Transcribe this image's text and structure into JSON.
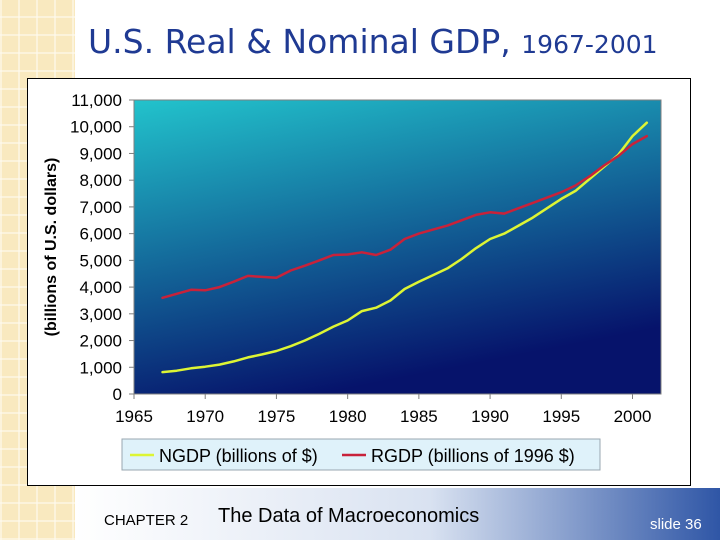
{
  "slide": {
    "title": "U.S. Real & Nominal GDP,",
    "title_years": "1967-2001",
    "chapter": "CHAPTER 2",
    "subtitle": "The Data of Macroeconomics",
    "slide_number": "slide 36"
  },
  "colors": {
    "title": "#1f3a93",
    "plot_top": "#22c3cc",
    "plot_bottom": "#06136b",
    "ngdp_line": "#ddf534",
    "rgdp_line": "#c8223a",
    "sidebar": "#f9e9bf",
    "legend_bg": "#dff2fa"
  },
  "chart_data": {
    "type": "line",
    "title": "",
    "xlabel": "",
    "ylabel": "(billions of U.S. dollars)",
    "xlim": [
      1965,
      2002
    ],
    "ylim": [
      0,
      11000
    ],
    "x_ticks": [
      1965,
      1970,
      1975,
      1980,
      1985,
      1990,
      1995,
      2000
    ],
    "y_ticks": [
      0,
      1000,
      2000,
      3000,
      4000,
      5000,
      6000,
      7000,
      8000,
      9000,
      10000,
      11000
    ],
    "y_tick_labels": [
      "0",
      "1,000",
      "2,000",
      "3,000",
      "4,000",
      "5,000",
      "6,000",
      "7,000",
      "8,000",
      "9,000",
      "10,000",
      "11,000"
    ],
    "legend_position": "bottom",
    "series": [
      {
        "name": "NGDP (billions of $)",
        "color": "#ddf534",
        "x": [
          1967,
          1968,
          1969,
          1970,
          1971,
          1972,
          1973,
          1974,
          1975,
          1976,
          1977,
          1978,
          1979,
          1980,
          1981,
          1982,
          1983,
          1984,
          1985,
          1986,
          1987,
          1988,
          1989,
          1990,
          1991,
          1992,
          1993,
          1994,
          1995,
          1996,
          1997,
          1998,
          1999,
          2000,
          2001
        ],
        "y": [
          820,
          870,
          960,
          1020,
          1100,
          1220,
          1370,
          1480,
          1610,
          1790,
          2000,
          2250,
          2520,
          2750,
          3100,
          3230,
          3500,
          3930,
          4200,
          4450,
          4700,
          5050,
          5450,
          5800,
          6000,
          6300,
          6600,
          6950,
          7300,
          7600,
          8050,
          8500,
          8950,
          9650,
          10150
        ]
      },
      {
        "name": "RGDP (billions of 1996 $)",
        "color": "#c8223a",
        "x": [
          1967,
          1968,
          1969,
          1970,
          1971,
          1972,
          1973,
          1974,
          1975,
          1976,
          1977,
          1978,
          1979,
          1980,
          1981,
          1982,
          1983,
          1984,
          1985,
          1986,
          1987,
          1988,
          1989,
          1990,
          1991,
          1992,
          1993,
          1994,
          1995,
          1996,
          1997,
          1998,
          1999,
          2000,
          2001
        ],
        "y": [
          3600,
          3750,
          3900,
          3880,
          4000,
          4200,
          4420,
          4380,
          4350,
          4620,
          4800,
          5000,
          5200,
          5220,
          5300,
          5200,
          5400,
          5800,
          6000,
          6150,
          6300,
          6500,
          6700,
          6800,
          6750,
          6950,
          7150,
          7350,
          7550,
          7800,
          8150,
          8550,
          8900,
          9350,
          9650
        ]
      }
    ]
  }
}
